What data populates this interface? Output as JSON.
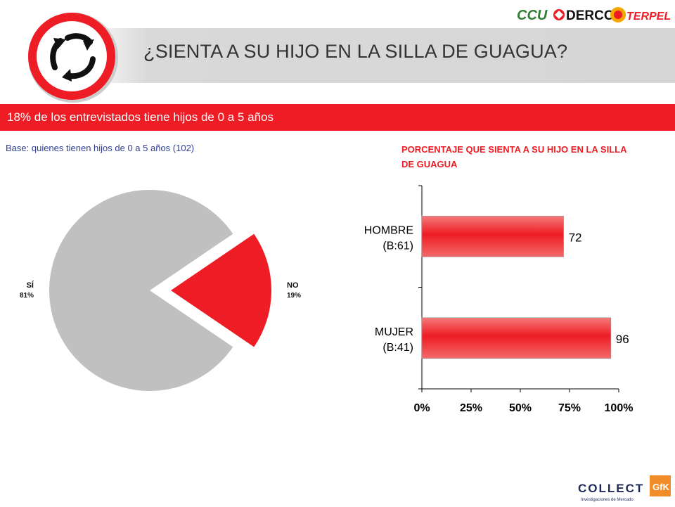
{
  "header": {
    "title": "¿SIENTA A SU HIJO EN LA SILLA DE GUAGUA?",
    "sponsor_logos": [
      "CCU",
      "DERCO",
      "TERPEL"
    ]
  },
  "banner": {
    "text": "18% de los entrevistados tiene hijos de 0 a 5 años"
  },
  "base_note": "Base: quienes tienen hijos de 0 a 5 años (102)",
  "footer": {
    "logo_text": "COLLECT",
    "logo_sub": "Investigaciones de Mercado",
    "gfk": "GfK"
  },
  "colors": {
    "accent_red": "#ee1c24",
    "pie_gray": "#c0c0c0",
    "text_blue": "#2f3f8f"
  },
  "chart_data": [
    {
      "type": "pie",
      "slices": [
        {
          "label": "SÍ",
          "value": 81,
          "value_label": "81%",
          "color": "#c0c0c0",
          "exploded": false
        },
        {
          "label": "NO",
          "value": 19,
          "value_label": "19%",
          "color": "#ee1c24",
          "exploded": true
        }
      ]
    },
    {
      "type": "bar",
      "orientation": "horizontal",
      "title": "PORCENTAJE QUE SIENTA A SU HIJO EN LA SILLA DE GUAGUA",
      "categories": [
        {
          "line1": "HOMBRE",
          "line2": "(B:61)"
        },
        {
          "line1": "MUJER",
          "line2": "(B:41)"
        }
      ],
      "values": [
        72,
        96
      ],
      "value_labels": [
        "72",
        "96"
      ],
      "xlim": [
        0,
        100
      ],
      "xticks": [
        "0%",
        "25%",
        "50%",
        "75%",
        "100%"
      ],
      "grid": false
    }
  ]
}
